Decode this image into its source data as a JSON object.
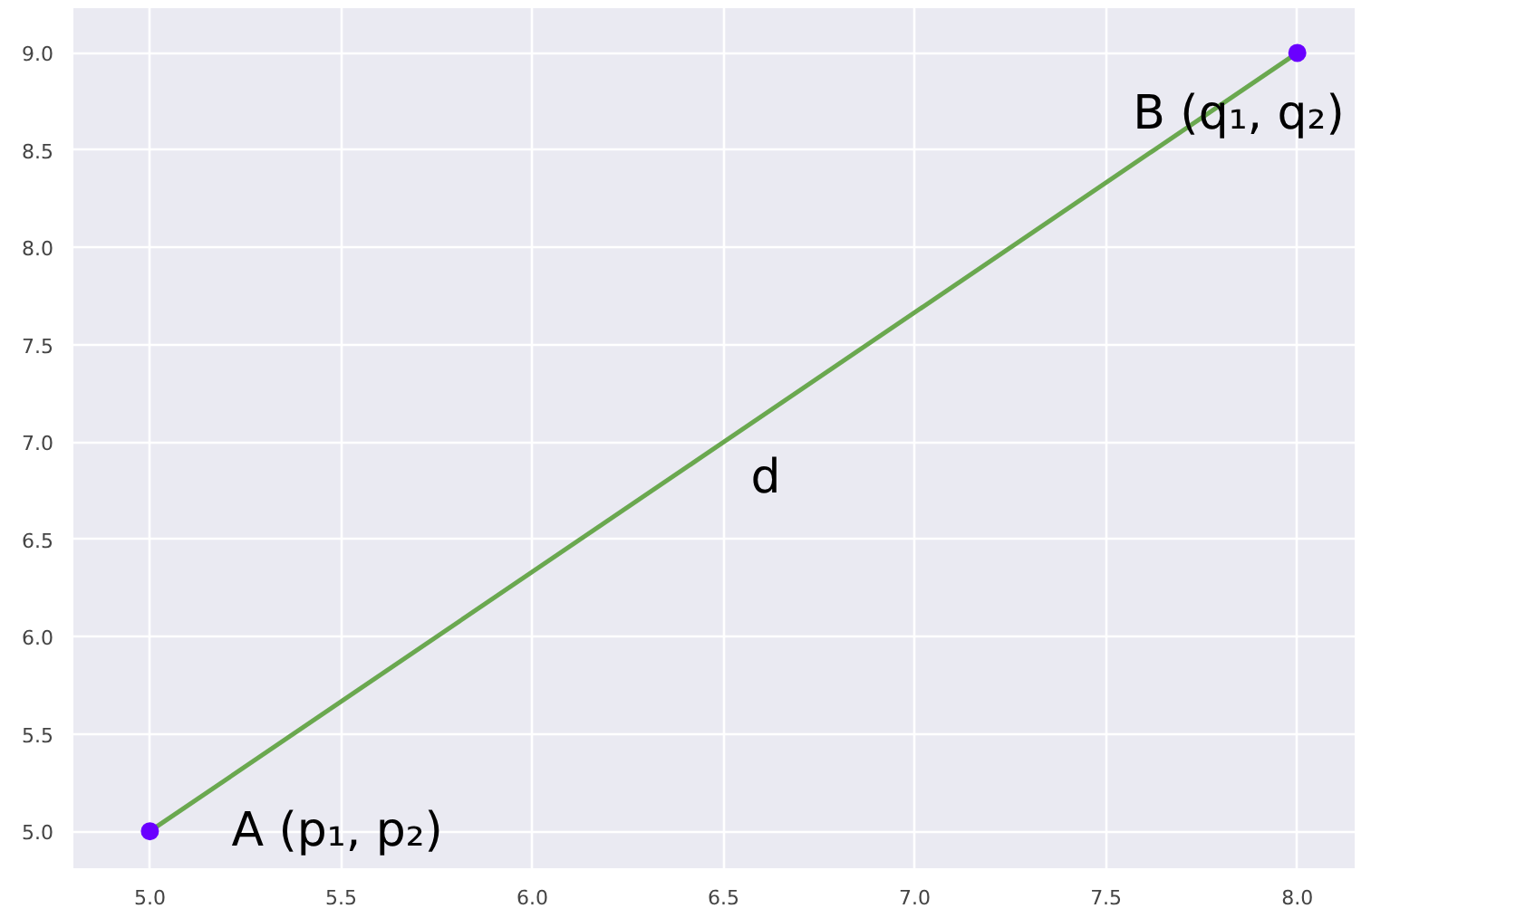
{
  "chart_data": {
    "type": "line",
    "x": [
      5,
      8
    ],
    "series": [
      {
        "color": "#6aa84f",
        "values": [
          5,
          9
        ],
        "marker": "none"
      },
      {
        "type": "scatter",
        "color": "#6a00ff",
        "values": [
          5,
          9
        ],
        "marker": "circle"
      }
    ],
    "xlim": [
      4.8,
      8.15
    ],
    "ylim": [
      4.81,
      9.23
    ],
    "xticks": [
      {
        "value": 5,
        "label": "5.0"
      },
      {
        "value": 5.5,
        "label": "5.5"
      },
      {
        "value": 6,
        "label": "6.0"
      },
      {
        "value": 6.5,
        "label": "6.5"
      },
      {
        "value": 7,
        "label": "7.0"
      },
      {
        "value": 7.5,
        "label": "7.5"
      },
      {
        "value": 8,
        "label": "8.0"
      }
    ],
    "yticks": [
      {
        "value": 5,
        "label": "5.0"
      },
      {
        "value": 5.5,
        "label": "5.5"
      },
      {
        "value": 6,
        "label": "6.0"
      },
      {
        "value": 6.5,
        "label": "6.5"
      },
      {
        "value": 7,
        "label": "7.0"
      },
      {
        "value": 7.5,
        "label": "7.5"
      },
      {
        "value": 8,
        "label": "8.0"
      },
      {
        "value": 8.5,
        "label": "8.5"
      },
      {
        "value": 9,
        "label": "9.0"
      }
    ],
    "annotations": [
      "A (p₁, p₂)",
      "B (q₁, q₂)",
      "d"
    ],
    "grid": true,
    "line_style": "solid"
  }
}
